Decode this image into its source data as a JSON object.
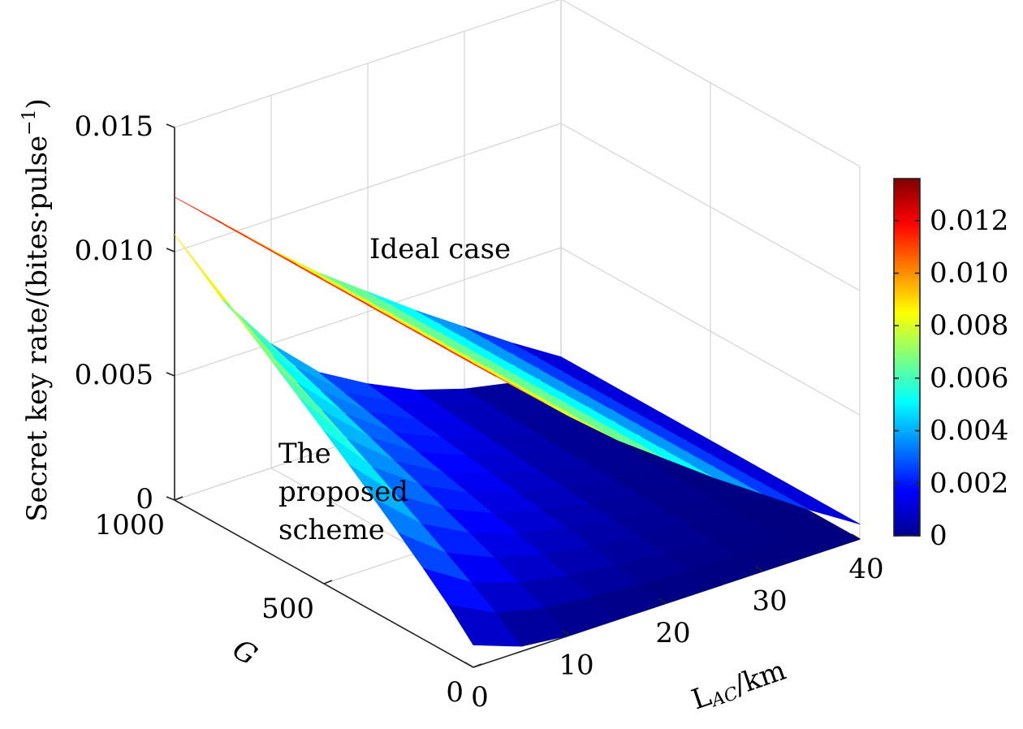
{
  "chart_data": {
    "type": "surface3d",
    "title": "",
    "zlabel": "Secret key rate/(bites·pulse",
    "zlabel_sup": "−1",
    "zlabel_close": ")",
    "ylabel": "G",
    "xlabel_main": "L",
    "xlabel_sub": "AC",
    "xlabel_unit": "/km",
    "x_ticks": [
      "0",
      "10",
      "20",
      "30",
      "40"
    ],
    "x_tick_values": [
      0,
      10,
      20,
      30,
      40
    ],
    "y_ticks": [
      "0",
      "500",
      "1000"
    ],
    "y_tick_values": [
      0,
      500,
      1000
    ],
    "z_ticks": [
      "0",
      "0.005",
      "0.010",
      "0.015"
    ],
    "z_tick_values": [
      0,
      0.005,
      0.01,
      0.015
    ],
    "xlim": [
      0,
      40
    ],
    "ylim": [
      0,
      1000
    ],
    "zlim": [
      0,
      0.015
    ],
    "grid": true,
    "colormap": "jet",
    "colorbar": {
      "ticks": [
        "0",
        "0.002",
        "0.004",
        "0.006",
        "0.008",
        "0.010",
        "0.012"
      ],
      "values": [
        0,
        0.002,
        0.004,
        0.006,
        0.008,
        0.01,
        0.012
      ],
      "range": [
        0,
        0.0136
      ]
    },
    "series": [
      {
        "label": "Ideal case",
        "x": [
          0,
          5,
          10,
          15,
          20,
          25,
          30,
          35,
          40
        ],
        "z_at_G_max": [
          0.0122,
          0.0105,
          0.0088,
          0.0072,
          0.0058,
          0.0044,
          0.0031,
          0.0018,
          0.0006
        ],
        "z_at_G_min": [
          0.0122,
          0.0105,
          0.0088,
          0.0072,
          0.0058,
          0.0044,
          0.0031,
          0.0018,
          0.0006
        ]
      },
      {
        "label_lines": [
          "The",
          "proposed",
          "scheme"
        ],
        "x": [
          0,
          5,
          10,
          15,
          20,
          25,
          30,
          35,
          40
        ],
        "z_at_G_max": [
          0.0107,
          0.0074,
          0.005,
          0.0032,
          0.0021,
          0.0012,
          0.0006,
          0.0002,
          0.0
        ],
        "z_at_G_min": [
          0.0009,
          0.0002,
          0.0,
          0.0,
          0.0,
          0.0,
          0.0,
          0.0,
          0.0
        ]
      }
    ]
  }
}
